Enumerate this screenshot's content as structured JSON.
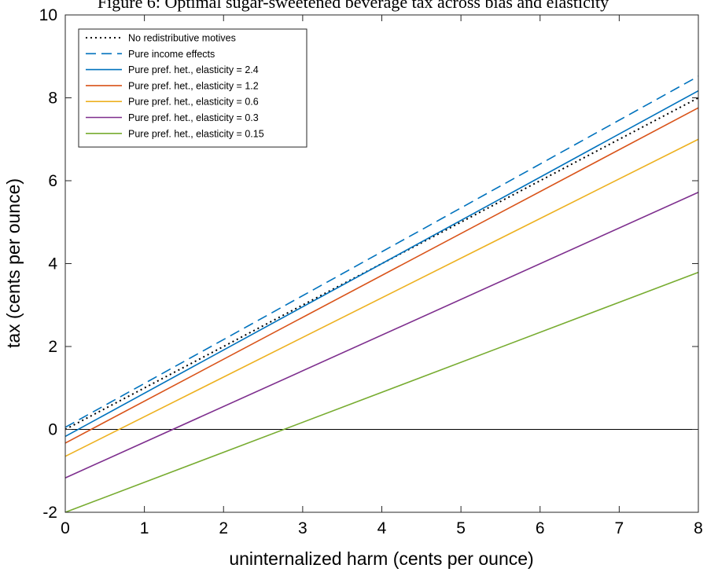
{
  "chart_data": {
    "type": "line",
    "title": "Figure 6: Optimal sugar-sweetened beverage tax across bias and elasticity",
    "xlabel": "uninternalized harm (cents per ounce)",
    "ylabel": "tax (cents per ounce)",
    "xlim": [
      0,
      8
    ],
    "ylim": [
      -2,
      10
    ],
    "xticks": [
      "0",
      "1",
      "2",
      "3",
      "4",
      "5",
      "6",
      "7",
      "8"
    ],
    "yticks": [
      "-2",
      "0",
      "2",
      "4",
      "6",
      "8",
      "10"
    ],
    "grid": false,
    "legend_position": "top-left",
    "reference_line_y": 0,
    "series": [
      {
        "name": "No redistributive motives",
        "color": "#000000",
        "style": "dotted",
        "x": [
          0,
          8
        ],
        "y": [
          0,
          8
        ]
      },
      {
        "name": "Pure income effects",
        "color": "#0072BD",
        "style": "dashed",
        "x": [
          0,
          8
        ],
        "y": [
          0.05,
          8.52
        ]
      },
      {
        "name": "Pure pref. het., elasticity = 2.4",
        "color": "#0072BD",
        "style": "solid",
        "x": [
          0,
          8
        ],
        "y": [
          -0.17,
          8.17
        ]
      },
      {
        "name": "Pure pref. het., elasticity = 1.2",
        "color": "#D95319",
        "style": "solid",
        "x": [
          0,
          8
        ],
        "y": [
          -0.33,
          7.76
        ]
      },
      {
        "name": "Pure pref. het., elasticity = 0.6",
        "color": "#EDB120",
        "style": "solid",
        "x": [
          0,
          8
        ],
        "y": [
          -0.65,
          7.0
        ]
      },
      {
        "name": "Pure pref. het., elasticity = 0.3",
        "color": "#7E2F8E",
        "style": "solid",
        "x": [
          0,
          8
        ],
        "y": [
          -1.17,
          5.72
        ]
      },
      {
        "name": "Pure pref. het., elasticity = 0.15",
        "color": "#77AC30",
        "style": "solid",
        "x": [
          0,
          8
        ],
        "y": [
          -2.0,
          3.79
        ]
      }
    ]
  }
}
